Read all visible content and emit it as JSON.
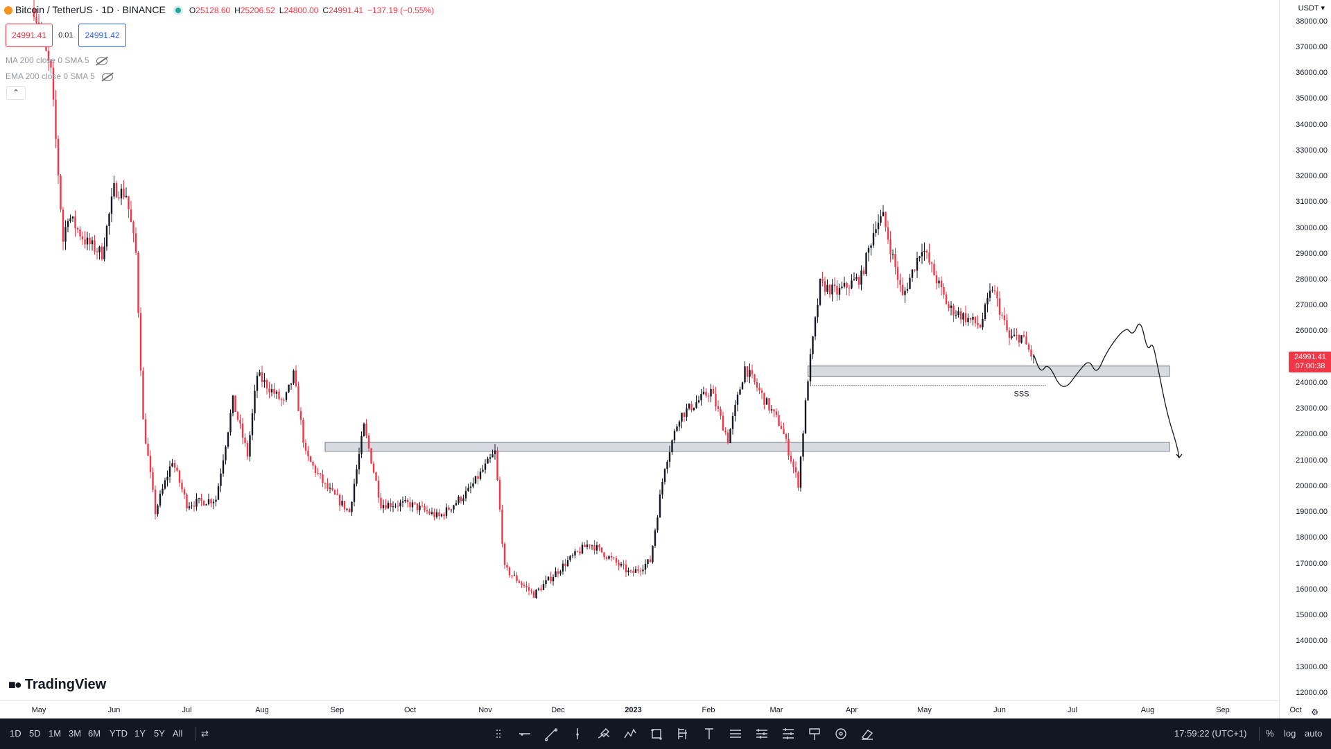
{
  "legend": {
    "symbol": "Bitcoin / TetherUS · 1D · BINANCE",
    "open_key": "O",
    "open": "25128.60",
    "high_key": "H",
    "high": "25206.52",
    "low_key": "L",
    "low": "24800.00",
    "close_key": "C",
    "close": "24991.41",
    "change": "−137.19 (−0.55%)"
  },
  "trade": {
    "sell": "24991.41",
    "spread": "0.01",
    "buy": "24991.42"
  },
  "indicators": [
    {
      "label": "MA 200 close 0 SMA 5"
    },
    {
      "label": "EMA 200 close 0 SMA 5"
    }
  ],
  "price_axis": {
    "currency": "USDT",
    "ticks": [
      "38000.00",
      "37000.00",
      "36000.00",
      "35000.00",
      "34000.00",
      "33000.00",
      "32000.00",
      "31000.00",
      "30000.00",
      "29000.00",
      "28000.00",
      "27000.00",
      "26000.00",
      "25000.00",
      "24000.00",
      "23000.00",
      "22000.00",
      "21000.00",
      "20000.00",
      "19000.00",
      "18000.00",
      "17000.00",
      "16000.00",
      "15000.00",
      "14000.00",
      "13000.00",
      "12000.00"
    ],
    "last_price": "24991.41",
    "countdown": "07:00:38"
  },
  "time_axis": {
    "ticks": [
      {
        "label": "May"
      },
      {
        "label": "Jun"
      },
      {
        "label": "Jul"
      },
      {
        "label": "Aug"
      },
      {
        "label": "Sep"
      },
      {
        "label": "Oct"
      },
      {
        "label": "Nov"
      },
      {
        "label": "Dec"
      },
      {
        "label": "2023"
      },
      {
        "label": "Feb"
      },
      {
        "label": "Mar"
      },
      {
        "label": "Apr"
      },
      {
        "label": "May"
      },
      {
        "label": "Jun"
      },
      {
        "label": "Jul"
      },
      {
        "label": "Aug"
      },
      {
        "label": "Sep"
      },
      {
        "label": "Oct"
      }
    ]
  },
  "annotation": {
    "sss_label": "SSS"
  },
  "brand": {
    "logo_text": "TradingView"
  },
  "bottom_bar": {
    "ranges": [
      "1D",
      "5D",
      "1M",
      "3M",
      "6M",
      "YTD",
      "1Y",
      "5Y",
      "All"
    ],
    "clock": "17:59:22 (UTC+1)",
    "percent": "%",
    "log": "log",
    "auto": "auto"
  },
  "drawing_tools": [
    "drag-handle-icon",
    "horizontal-line-icon",
    "trend-line-icon",
    "vertical-line-icon",
    "brush-icon",
    "path-icon",
    "rectangle-icon",
    "fib-icon",
    "text-icon",
    "lines-icon",
    "parallel-channel-icon",
    "ruler-icon",
    "pin-icon",
    "circle-icon",
    "eraser-icon"
  ],
  "colors": {
    "up": "#131722",
    "down": "#f23645",
    "zone_fill": "#d1d4dc",
    "zone_stroke": "#787b86",
    "accent": "#2962ff"
  },
  "chart_data": {
    "type": "candlestick",
    "symbol": "BTCUSDT",
    "interval": "1D",
    "y_range": [
      11700,
      38500
    ],
    "scale": "linear",
    "grid": false,
    "price_path": [
      [
        "2022-04-29",
        38500
      ],
      [
        "2022-05-06",
        36000
      ],
      [
        "2022-05-11",
        29500
      ],
      [
        "2022-05-13",
        30500
      ],
      [
        "2022-05-20",
        29500
      ],
      [
        "2022-05-27",
        29000
      ],
      [
        "2022-06-01",
        31500
      ],
      [
        "2022-06-06",
        31300
      ],
      [
        "2022-06-10",
        29000
      ],
      [
        "2022-06-13",
        22500
      ],
      [
        "2022-06-18",
        19000
      ],
      [
        "2022-06-25",
        21000
      ],
      [
        "2022-07-01",
        19300
      ],
      [
        "2022-07-13",
        19500
      ],
      [
        "2022-07-20",
        23300
      ],
      [
        "2022-07-26",
        21200
      ],
      [
        "2022-07-30",
        24300
      ],
      [
        "2022-08-10",
        23200
      ],
      [
        "2022-08-14",
        24300
      ],
      [
        "2022-08-19",
        21200
      ],
      [
        "2022-08-27",
        20000
      ],
      [
        "2022-09-06",
        19000
      ],
      [
        "2022-09-12",
        22300
      ],
      [
        "2022-09-19",
        19300
      ],
      [
        "2022-10-01",
        19300
      ],
      [
        "2022-10-13",
        18800
      ],
      [
        "2022-10-25",
        19800
      ],
      [
        "2022-11-05",
        21300
      ],
      [
        "2022-11-09",
        16800
      ],
      [
        "2022-11-21",
        15800
      ],
      [
        "2022-12-05",
        17100
      ],
      [
        "2022-12-14",
        17800
      ],
      [
        "2022-12-31",
        16600
      ],
      [
        "2023-01-08",
        17100
      ],
      [
        "2023-01-14",
        20800
      ],
      [
        "2023-01-20",
        22700
      ],
      [
        "2023-02-02",
        23700
      ],
      [
        "2023-02-09",
        21800
      ],
      [
        "2023-02-16",
        24600
      ],
      [
        "2023-02-25",
        23200
      ],
      [
        "2023-03-03",
        22300
      ],
      [
        "2023-03-10",
        20100
      ],
      [
        "2023-03-14",
        24200
      ],
      [
        "2023-03-19",
        27800
      ],
      [
        "2023-03-26",
        27500
      ],
      [
        "2023-04-05",
        28100
      ],
      [
        "2023-04-11",
        30200
      ],
      [
        "2023-04-14",
        30400
      ],
      [
        "2023-04-22",
        27300
      ],
      [
        "2023-04-30",
        29300
      ],
      [
        "2023-05-11",
        26900
      ],
      [
        "2023-05-24",
        26200
      ],
      [
        "2023-05-29",
        27700
      ],
      [
        "2023-06-05",
        25700
      ],
      [
        "2023-06-10",
        25800
      ],
      [
        "2023-06-15",
        24900
      ]
    ],
    "zones": [
      {
        "from": "2023-03-14",
        "to": "2023-08-10",
        "low": 24250,
        "high": 24650
      },
      {
        "from": "2022-08-27",
        "to": "2023-08-10",
        "low": 21350,
        "high": 21700
      }
    ],
    "sss_line": {
      "from": "2023-03-14",
      "to": "2023-06-20",
      "price": 23900
    },
    "projection": [
      [
        "2023-06-15",
        25100
      ],
      [
        "2023-06-18",
        24350
      ],
      [
        "2023-06-21",
        24800
      ],
      [
        "2023-06-27",
        23600
      ],
      [
        "2023-07-04",
        24500
      ],
      [
        "2023-07-08",
        24900
      ],
      [
        "2023-07-11",
        24300
      ],
      [
        "2023-07-15",
        25200
      ],
      [
        "2023-07-23",
        26200
      ],
      [
        "2023-07-26",
        25800
      ],
      [
        "2023-07-29",
        26500
      ],
      [
        "2023-08-01",
        25200
      ],
      [
        "2023-08-03",
        25600
      ],
      [
        "2023-08-05",
        24700
      ],
      [
        "2023-08-09",
        22800
      ],
      [
        "2023-08-13",
        21600
      ],
      [
        "2023-08-14",
        21100
      ]
    ]
  }
}
